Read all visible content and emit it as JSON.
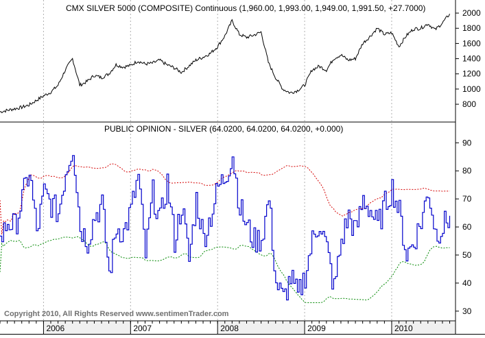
{
  "colors": {
    "price_line": "#000000",
    "opinion_line": "#0000cc",
    "upper_band": "#d40000",
    "lower_band": "#008800",
    "grid": "#b0b0b0",
    "footer_text": "#707070",
    "year_band": "#f0f0f0"
  },
  "footer": {
    "copyright": "Copyright 2010, All Rights Reserved  www.sentimenTrader.com"
  },
  "chart_data": [
    {
      "type": "line",
      "title": "CMX SILVER 5000 (COMPOSITE) Continuous (1,960.00, 1,993.00, 1,949.00, 1,991.50, +27.7000)",
      "xlabel": "",
      "ylabel": "",
      "x_ticks": [
        "2006",
        "2007",
        "2008",
        "2009",
        "2010"
      ],
      "y_ticks": [
        800,
        1000,
        1200,
        1400,
        1600,
        1800,
        2000
      ],
      "ylim": [
        620,
        2100
      ],
      "grid": "vertical dotted lines at year boundaries",
      "series": [
        {
          "x": [
            "2005-07",
            "2005-08",
            "2005-09",
            "2005-10",
            "2005-11",
            "2005-12",
            "2006-01",
            "2006-02",
            "2006-03",
            "2006-04",
            "2006-05",
            "2006-06",
            "2006-07",
            "2006-08",
            "2006-09",
            "2006-10",
            "2006-11",
            "2006-12",
            "2007-01",
            "2007-02",
            "2007-03",
            "2007-04",
            "2007-05",
            "2007-06",
            "2007-07",
            "2007-08",
            "2007-09",
            "2007-10",
            "2007-11",
            "2007-12",
            "2008-01",
            "2008-02",
            "2008-03",
            "2008-04",
            "2008-05",
            "2008-06",
            "2008-07",
            "2008-08",
            "2008-09",
            "2008-10",
            "2008-11",
            "2008-12",
            "2009-01",
            "2009-02",
            "2009-03",
            "2009-04",
            "2009-05",
            "2009-06",
            "2009-07",
            "2009-08",
            "2009-09",
            "2009-10",
            "2009-11",
            "2009-12",
            "2010-01",
            "2010-02",
            "2010-03",
            "2010-04",
            "2010-05",
            "2010-06",
            "2010-07",
            "2010-08",
            "2010-09"
          ],
          "values": [
            700,
            720,
            740,
            760,
            790,
            850,
            910,
            960,
            1050,
            1250,
            1400,
            1050,
            1100,
            1180,
            1150,
            1200,
            1320,
            1290,
            1310,
            1370,
            1330,
            1340,
            1380,
            1320,
            1280,
            1220,
            1300,
            1380,
            1420,
            1470,
            1560,
            1700,
            1900,
            1720,
            1680,
            1710,
            1750,
            1350,
            1150,
            1000,
            950,
            980,
            1050,
            1250,
            1300,
            1250,
            1400,
            1450,
            1380,
            1400,
            1600,
            1690,
            1800,
            1720,
            1740,
            1560,
            1700,
            1790,
            1800,
            1860,
            1780,
            1870,
            1990
          ]
        }
      ]
    },
    {
      "type": "line",
      "title": "PUBLIC OPINION - SILVER (64.0200, 64.0200, 64.0200, +0.000)",
      "xlabel": "",
      "ylabel": "",
      "x_ticks": [
        "2006",
        "2007",
        "2008",
        "2009",
        "2010"
      ],
      "y_ticks": [
        30,
        40,
        50,
        60,
        70,
        80,
        90
      ],
      "ylim": [
        28,
        93
      ],
      "grid": "vertical dotted lines at year boundaries",
      "series": [
        {
          "x": [
            "2005-07",
            "2005-08",
            "2005-09",
            "2005-10",
            "2005-11",
            "2005-12",
            "2006-01",
            "2006-02",
            "2006-03",
            "2006-04",
            "2006-05",
            "2006-06",
            "2006-07",
            "2006-08",
            "2006-09",
            "2006-10",
            "2006-11",
            "2006-12",
            "2007-01",
            "2007-02",
            "2007-03",
            "2007-04",
            "2007-05",
            "2007-06",
            "2007-07",
            "2007-08",
            "2007-09",
            "2007-10",
            "2007-11",
            "2007-12",
            "2008-01",
            "2008-02",
            "2008-03",
            "2008-04",
            "2008-05",
            "2008-06",
            "2008-07",
            "2008-08",
            "2008-09",
            "2008-10",
            "2008-11",
            "2008-12",
            "2009-01",
            "2009-02",
            "2009-03",
            "2009-04",
            "2009-05",
            "2009-06",
            "2009-07",
            "2009-08",
            "2009-09",
            "2009-10",
            "2009-11",
            "2009-12",
            "2010-01",
            "2010-02",
            "2010-03",
            "2010-04",
            "2010-05",
            "2010-06",
            "2010-07",
            "2010-08",
            "2010-09"
          ],
          "values": [
            55,
            62,
            60,
            70,
            80,
            58,
            72,
            68,
            65,
            80,
            89,
            60,
            55,
            64,
            68,
            43,
            60,
            58,
            66,
            78,
            50,
            72,
            62,
            76,
            55,
            68,
            48,
            70,
            56,
            64,
            74,
            78,
            86,
            67,
            60,
            55,
            56,
            70,
            40,
            34,
            42,
            35,
            43,
            55,
            62,
            52,
            38,
            55,
            64,
            58,
            70,
            66,
            60,
            68,
            74,
            65,
            50,
            55,
            62,
            73,
            58,
            60,
            64
          ]
        }
      ]
    }
  ]
}
